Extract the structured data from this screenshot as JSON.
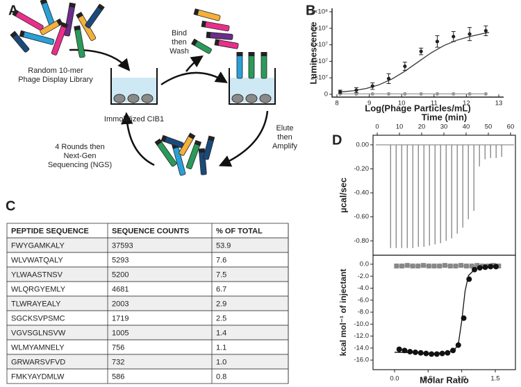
{
  "panel_labels": [
    "A",
    "B",
    "C",
    "D"
  ],
  "diagram": {
    "library_label": [
      "Random 10-mer",
      "Phage Display Library"
    ],
    "bind_label": [
      "Bind",
      "then",
      "Wash"
    ],
    "target_label": "Immobilized CIB1",
    "elute_label": [
      "Elute",
      "then",
      "Amplify"
    ],
    "rounds_label": [
      "4 Rounds then",
      "Next-Gen",
      "Sequencing (NGS)"
    ]
  },
  "chart_data": [
    {
      "type": "scatter",
      "xlabel": "Log(Phage Particles/mL)",
      "ylabel": "Luminescence",
      "xlim": [
        7.85,
        13.15
      ],
      "ylim": [
        0,
        100000000
      ],
      "xticks": [
        8,
        9,
        10,
        11,
        12,
        13
      ],
      "yticks": [
        0,
        {
          "value": 20000000,
          "label": "2×10⁷"
        },
        {
          "value": 40000000,
          "label": "4×10⁷"
        },
        {
          "value": 60000000,
          "label": "6×10⁷"
        },
        {
          "value": 80000000,
          "label": "8×10⁷"
        },
        {
          "value": 100000000,
          "label": "1×10⁸"
        }
      ],
      "series": [
        {
          "color": "#999999",
          "marker": "circle",
          "line": true,
          "x": [
            8.1,
            8.6,
            9.1,
            9.6,
            10.1,
            10.6,
            11.1,
            11.6,
            12.1,
            12.6
          ],
          "values": [
            500000,
            500000,
            500000,
            500000,
            500000,
            500000,
            500000,
            500000,
            500000,
            500000
          ]
        },
        {
          "color": "#333333",
          "line": true,
          "x": [
            8.1,
            8.5,
            8.9,
            9.3,
            9.7,
            10.1,
            10.5,
            10.9,
            11.3,
            11.7,
            12.1,
            12.5,
            12.7
          ],
          "values": [
            2800000,
            4300000,
            7000000,
            11500000,
            18500000,
            28000000,
            39000000,
            50000000,
            59000000,
            65500000,
            70000000,
            73500000,
            75000000
          ]
        },
        {
          "color": "#222222",
          "marker": "circle",
          "x": [
            8.1,
            8.6,
            9.1,
            9.6,
            10.1,
            10.6,
            11.1,
            11.6,
            12.1,
            12.6
          ],
          "values": [
            3000000,
            5000000,
            10000000,
            19000000,
            34000000,
            52000000,
            64000000,
            70000000,
            73000000,
            77000000
          ],
          "errors": [
            2000000,
            3000000,
            4000000,
            6000000,
            5000000,
            4000000,
            7000000,
            6000000,
            8000000,
            6000000
          ]
        }
      ]
    },
    {
      "type": "injection",
      "xlabel": "Time (min)",
      "ylabel": "µcal/sec",
      "xaxis": "top",
      "xlim": [
        -1.9,
        62.2
      ],
      "ylim": [
        -0.92,
        0.08
      ],
      "xticks": [
        0,
        10,
        20,
        30,
        40,
        50,
        60
      ],
      "yticks": [
        {
          "value": 0,
          "label": "0.00"
        },
        {
          "value": -0.2,
          "label": "-0.20"
        },
        {
          "value": -0.4,
          "label": "-0.40"
        },
        {
          "value": -0.6,
          "label": "-0.60"
        },
        {
          "value": -0.8,
          "label": "-0.80"
        }
      ],
      "color": "#777777",
      "x": [
        6,
        8.5,
        11,
        13.5,
        16,
        18.5,
        21,
        23.5,
        26,
        28.5,
        31,
        33.5,
        36,
        38.5,
        41,
        43.5,
        46,
        48.5,
        51,
        53.5,
        56
      ],
      "values": [
        -0.86,
        -0.86,
        -0.86,
        -0.86,
        -0.86,
        -0.85,
        -0.85,
        -0.84,
        -0.83,
        -0.82,
        -0.8,
        -0.78,
        -0.74,
        -0.69,
        -0.62,
        -0.55,
        -0.18,
        -0.12,
        -0.11,
        -0.11,
        -0.1
      ]
    },
    {
      "type": "scatter",
      "xlabel": "Molar Ratio",
      "ylabel": "kcal mol⁻¹ of injectant",
      "xlim": [
        -0.32,
        1.8
      ],
      "ylim": [
        -17.6,
        1.5
      ],
      "xticks": [
        {
          "value": 0,
          "label": "0.0"
        },
        0.5,
        {
          "value": 1,
          "label": "1.0"
        },
        1.5
      ],
      "yticks": [
        {
          "value": 0,
          "label": "0.0"
        },
        {
          "value": -2,
          "label": "-2.0"
        },
        {
          "value": -4,
          "label": "-4.0"
        },
        {
          "value": -6,
          "label": "-6.0"
        },
        {
          "value": -8,
          "label": "-8.0"
        },
        {
          "value": -10,
          "label": "-10.0"
        },
        {
          "value": -12,
          "label": "-12.0"
        },
        {
          "value": -14,
          "label": "-14.0"
        },
        {
          "value": -16,
          "label": "-16.0"
        }
      ],
      "series": [
        {
          "color": "#888888",
          "marker": "square",
          "line": true,
          "x": [
            0.03,
            0.11,
            0.19,
            0.27,
            0.35,
            0.43,
            0.51,
            0.59,
            0.67,
            0.75,
            0.83,
            0.91,
            0.99,
            1.07,
            1.15,
            1.23,
            1.31,
            1.39,
            1.47,
            1.55
          ],
          "values": [
            -0.3,
            -0.3,
            -0.2,
            -0.3,
            -0.3,
            -0.2,
            -0.3,
            -0.3,
            -0.3,
            -0.2,
            -0.3,
            -0.3,
            -0.2,
            -0.3,
            -0.3,
            -0.2,
            -0.3,
            -0.3,
            -0.2,
            -0.3
          ]
        },
        {
          "color": "#111111",
          "line": true,
          "x": [
            0,
            0.2,
            0.4,
            0.6,
            0.8,
            0.9,
            0.95,
            1.0,
            1.05,
            1.1,
            1.2,
            1.4,
            1.55
          ],
          "values": [
            -14.7,
            -14.75,
            -14.8,
            -14.85,
            -14.7,
            -14.2,
            -13.3,
            -9.5,
            -4.5,
            -1.9,
            -0.8,
            -0.4,
            -0.3
          ]
        },
        {
          "color": "#111111",
          "marker": "circle",
          "x": [
            0.07,
            0.15,
            0.23,
            0.31,
            0.39,
            0.47,
            0.55,
            0.63,
            0.71,
            0.79,
            0.87,
            0.95,
            1.03,
            1.11,
            1.19,
            1.27,
            1.35,
            1.43,
            1.51
          ],
          "values": [
            -14.2,
            -14.4,
            -14.6,
            -14.7,
            -14.8,
            -14.9,
            -15.0,
            -15.0,
            -14.9,
            -14.8,
            -14.4,
            -13.5,
            -9.0,
            -2.5,
            -0.9,
            -0.6,
            -0.5,
            -0.4,
            -0.4
          ]
        }
      ]
    }
  ],
  "table": {
    "header": [
      "PEPTIDE SEQUENCE",
      "SEQUENCE COUNTS",
      "% OF TOTAL"
    ],
    "rows": [
      [
        "FWYGAMKALY",
        "37593",
        "53.9"
      ],
      [
        "WLVWATQALY",
        "5293",
        "7.6"
      ],
      [
        "YLWAASTNSV",
        "5200",
        "7.5"
      ],
      [
        "WLQRGYEMLY",
        "4681",
        "6.7"
      ],
      [
        "TLWRAYEALY",
        "2003",
        "2.9"
      ],
      [
        "SGCKSVPSMC",
        "1719",
        "2.5"
      ],
      [
        "VGVSGLNSVW",
        "1005",
        "1.4"
      ],
      [
        "WLMYAMNELY",
        "756",
        "1.1"
      ],
      [
        "GRWARSVFVD",
        "732",
        "1.0"
      ],
      [
        "FMKYAYDMLW",
        "586",
        "0.8"
      ]
    ]
  }
}
